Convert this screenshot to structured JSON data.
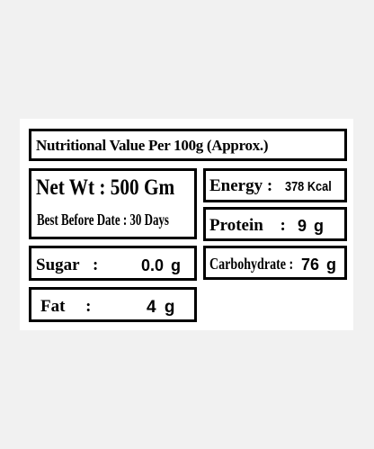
{
  "title": "Nutritional Value Per 100g  (Approx.)",
  "net_weight": "Net Wt : 500 Gm",
  "best_before": "Best Before Date : 30 Days",
  "nutrients": [
    {
      "label": "Energy :",
      "value": "378 Kcal"
    },
    {
      "label": "Protein :",
      "value": "9 g"
    },
    {
      "label": "Sugar :",
      "value": "0.0 g"
    },
    {
      "label": "Carbohydrate :",
      "value": "76 g"
    },
    {
      "label": "Fat :",
      "value": "4 g"
    }
  ]
}
